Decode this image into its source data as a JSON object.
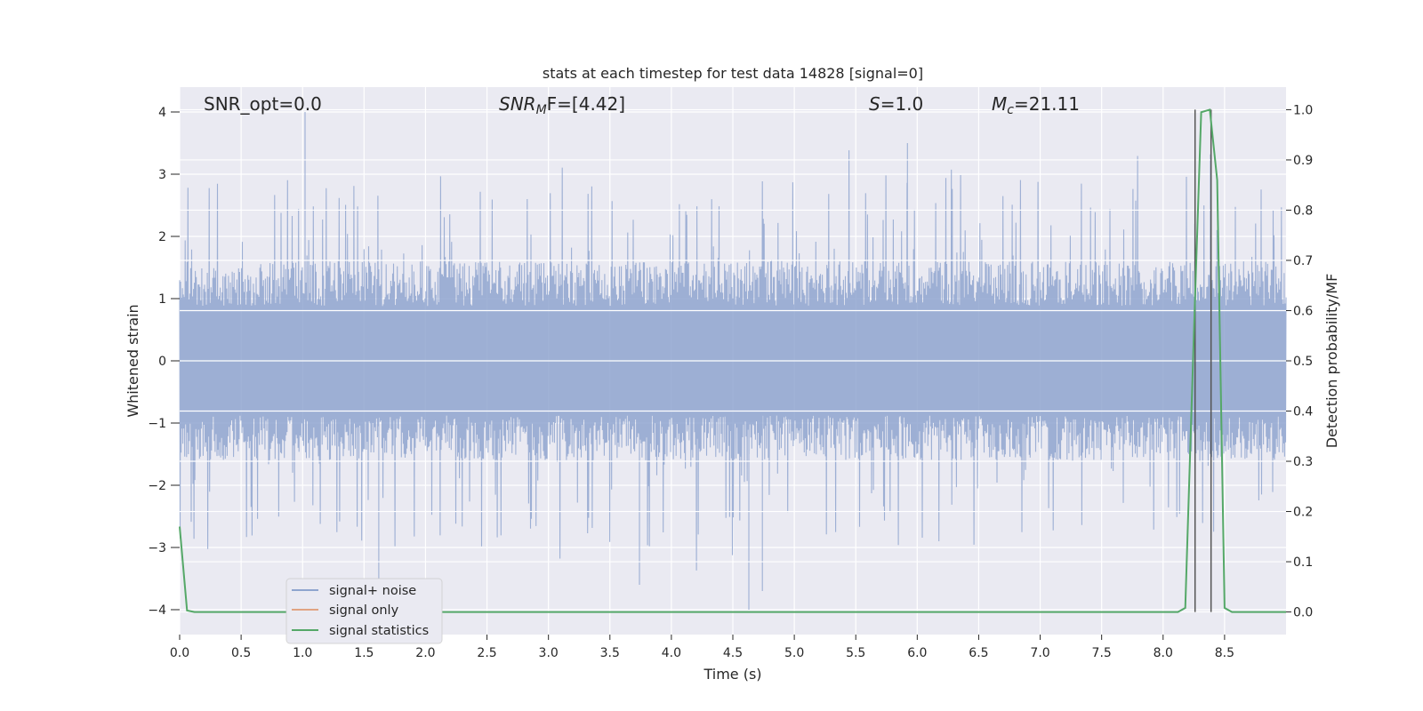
{
  "chart_data": {
    "type": "line",
    "title": "stats at each timestep for test data 14828 [signal=0]",
    "xlabel": "Time (s)",
    "ylabel": "Whitened strain",
    "y2label": "Detection probability/MF",
    "xlim": [
      0.0,
      9.0
    ],
    "ylim": [
      -4.4,
      4.4
    ],
    "y2lim": [
      -0.045,
      1.045
    ],
    "grid": true,
    "legend_position": "lower-left",
    "x_ticks": [
      "0.0",
      "0.5",
      "1.0",
      "1.5",
      "2.0",
      "2.5",
      "3.0",
      "3.5",
      "4.0",
      "4.5",
      "5.0",
      "5.5",
      "6.0",
      "6.5",
      "7.0",
      "7.5",
      "8.0",
      "8.5"
    ],
    "y_ticks": [
      "4",
      "3",
      "2",
      "1",
      "0",
      "−1",
      "−2",
      "−3",
      "−4"
    ],
    "y2_ticks": [
      "1.0",
      "0.9",
      "0.8",
      "0.7",
      "0.6",
      "0.5",
      "0.4",
      "0.3",
      "0.2",
      "0.1",
      "0.0"
    ],
    "annotations": {
      "snr_opt": "SNR_opt=0.0",
      "snr_mf_main": "SNR",
      "snr_mf_sub": "M",
      "snr_mf_rest": "F=[4.42]",
      "s_main": "S",
      "s_rest": "=1.0",
      "mc_main": "M",
      "mc_sub": "c",
      "mc_rest": "=21.11"
    },
    "series": [
      {
        "name": "signal+ noise",
        "axis": "left",
        "color": "#8fa5cf",
        "style": "dense noise spanning approx -4 to 4",
        "noise_band": {
          "core": 1.6,
          "spike_max": 4.0,
          "spike_min": -4.0
        },
        "notable_peaks": [
          {
            "x": 1.02,
            "y": 4.0
          },
          {
            "x": 5.92,
            "y": 3.5
          },
          {
            "x": 4.63,
            "y": -4.0
          },
          {
            "x": 1.62,
            "y": -3.6
          },
          {
            "x": 3.74,
            "y": -3.6
          },
          {
            "x": 4.74,
            "y": -3.7
          }
        ]
      },
      {
        "name": "signal only",
        "axis": "left",
        "color": "#dd8452",
        "x": [],
        "y": []
      },
      {
        "name": "signal statistics",
        "axis": "right",
        "color": "#55a868",
        "x": [
          0.0,
          0.06,
          0.12,
          8.12,
          8.18,
          8.25,
          8.31,
          8.38,
          8.44,
          8.5,
          8.56,
          8.62,
          9.0
        ],
        "y": [
          0.17,
          0.003,
          0.0,
          0.0,
          0.008,
          0.55,
          0.995,
          1.0,
          0.86,
          0.008,
          0.0,
          0.0,
          0.0
        ]
      }
    ],
    "vlines": [
      8.26,
      8.39
    ]
  },
  "legend": {
    "items": [
      "signal+ noise",
      "signal only",
      "signal statistics"
    ]
  }
}
